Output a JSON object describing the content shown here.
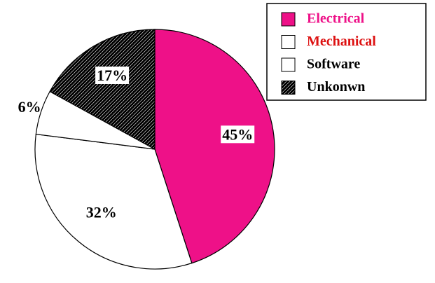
{
  "chart_data": {
    "type": "pie",
    "series": [
      {
        "name": "Electrical",
        "color": "#ee1188",
        "legend_text_color": "#ee1188",
        "pattern": "none"
      },
      {
        "name": "Mechanical",
        "color": "#dd1111",
        "legend_text_color": "#dd1111",
        "pattern": "vertical-lines"
      },
      {
        "name": "Software",
        "color": "#ffffff",
        "legend_text_color": "#000000",
        "pattern": "none"
      },
      {
        "name": "Unkonwn",
        "color": "#000000",
        "legend_text_color": "#000000",
        "pattern": "crosshatch"
      }
    ],
    "values": [
      45,
      32,
      6,
      17
    ],
    "value_labels": [
      "45%",
      "32%",
      "6%",
      "17%"
    ],
    "legend": "top-right"
  }
}
